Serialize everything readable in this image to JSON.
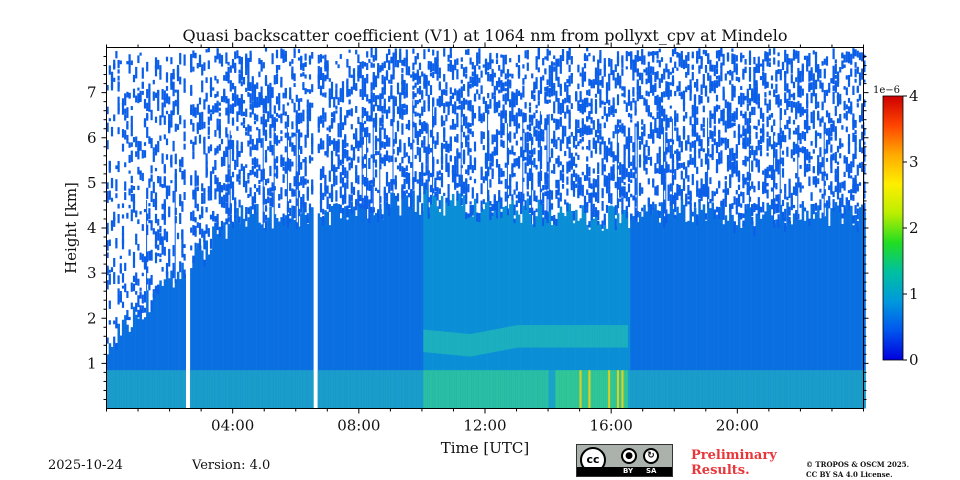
{
  "chart_data": {
    "type": "heatmap",
    "title": "Quasi backscatter coefficient (V1) at 1064 nm from pollyxt_cpv at Mindelo",
    "xlabel": "Time [UTC]",
    "ylabel": "Height [km]",
    "x_ticks": [
      "04:00",
      "08:00",
      "12:00",
      "16:00",
      "20:00"
    ],
    "x_range_hours": [
      0,
      24
    ],
    "y_ticks": [
      "1",
      "2",
      "3",
      "4",
      "5",
      "6",
      "7"
    ],
    "ylim": [
      0,
      8
    ],
    "colorbar": {
      "min": 0,
      "max": 4,
      "ticks": [
        "0",
        "1",
        "2",
        "3",
        "4"
      ],
      "scale_label": "1e−6",
      "colormap": [
        "#0000dd",
        "#0055ee",
        "#0099dd",
        "#00c0a0",
        "#22dd22",
        "#bbee00",
        "#ffee00",
        "#ffaa00",
        "#ff4400",
        "#cc0000"
      ]
    },
    "gaps_hours": [
      [
        2.45,
        2.65
      ],
      [
        6.5,
        6.65
      ]
    ],
    "layers": [
      {
        "kind": "aerosol top",
        "time_hours": [
          0,
          4,
          8,
          10,
          12,
          14,
          16,
          18,
          20,
          24
        ],
        "top_km": [
          1.5,
          4.2,
          4.4,
          4.6,
          4.5,
          4.3,
          4.2,
          4.4,
          4.3,
          4.3
        ]
      },
      {
        "kind": "surface layer",
        "time_hours": [
          0,
          24
        ],
        "top_km": [
          0.85,
          0.85
        ]
      },
      {
        "kind": "elevated enhancement",
        "time_hours": [
          10,
          11.5,
          13,
          16.5
        ],
        "center_km": [
          1.5,
          1.4,
          1.6,
          1.6
        ]
      }
    ]
  },
  "footer": {
    "date": "2025-10-24",
    "version": "Version: 4.0",
    "license_icons": [
      "cc-icon",
      "by-icon",
      "sa-icon"
    ],
    "license_badge_labels": {
      "cc": "cc",
      "by": "BY",
      "sa": "SA"
    },
    "preliminary": [
      "Preliminary",
      "Results."
    ],
    "copyright": [
      "© TROPOS & OSCM 2025.",
      "CC BY SA 4.0 License."
    ]
  },
  "colors": {
    "preliminary": "#e8373b",
    "axis": "#000000",
    "background": "#ffffff"
  }
}
